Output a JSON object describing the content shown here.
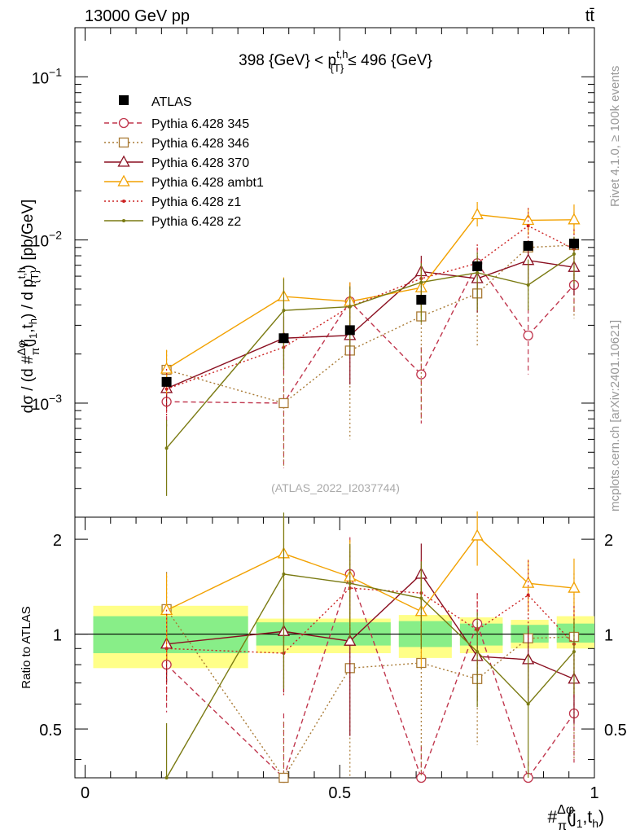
{
  "header": {
    "left_label": "13000 GeV pp",
    "right_label": "tt̄"
  },
  "side_labels": {
    "rivet": "Rivet 4.1.0, ≥ 100k events",
    "mcplots": "mcplots.cern.ch [arXiv:2401.10621]"
  },
  "watermark": "(ATLAS_2022_I2037744)",
  "chart_data": {
    "type": "scatter",
    "title": "398 {GeV} < p^{t,h}_{T} ≤ 496 {GeV}",
    "title_parts": {
      "prefix": "398 {GeV} < p",
      "sup": "t,h",
      "sub": "{T}",
      "suffix": " ≤ 496 {GeV}"
    },
    "ylabel": "dσ / (d #Δφ/π(j1,th) / d p^{t,h}_{T}) [pb/GeV]",
    "ylabel_parts": {
      "a": "dσ / (d #",
      "frac_num": "Δφ",
      "frac_den": "π",
      "b": "(j",
      "b_sub": "1",
      "c": ",t",
      "c_sub": "h",
      "d": ") / d p",
      "sup": "t,h",
      "sub": "{T}",
      "e": ") [pb/GeV]"
    },
    "xlabel": "#Δφ/π(j1,th)",
    "xlabel_parts": {
      "hash": "#",
      "frac_num": "Δφ",
      "frac_den": "π",
      "a": "(j",
      "a_sub": "1",
      "b": ",t",
      "b_sub": "h",
      "c": ")"
    },
    "yscale": "log",
    "ylim": [
      0.0002,
      0.2
    ],
    "xlim": [
      -0.02,
      1.0
    ],
    "x_ticks": [
      0,
      0.5,
      1
    ],
    "x_tick_labels": [
      "0",
      "0.5",
      "1"
    ],
    "y_major_ticks": [
      0.001,
      0.01,
      0.1
    ],
    "y_tick_labels": [
      {
        "base": "10",
        "exp": "−3"
      },
      {
        "base": "10",
        "exp": "−2"
      },
      {
        "base": "10",
        "exp": "−1"
      }
    ],
    "x": [
      0.16,
      0.39,
      0.52,
      0.66,
      0.77,
      0.87,
      0.96
    ],
    "atlas": {
      "name": "ATLAS",
      "values": [
        0.00135,
        0.0025,
        0.0028,
        0.0043,
        0.0069,
        0.0092,
        0.0095
      ],
      "band_edges": [
        0,
        0.32,
        0.6,
        0.72,
        0.82,
        0.91,
        1.0
      ],
      "band_stat": [
        [
          0.87,
          1.14
        ],
        [
          0.92,
          1.09
        ],
        [
          0.91,
          1.1
        ],
        [
          0.92,
          1.08
        ],
        [
          0.94,
          1.07
        ],
        [
          0.94,
          1.08
        ]
      ],
      "band_total": [
        [
          0.78,
          1.23
        ],
        [
          0.87,
          1.12
        ],
        [
          0.84,
          1.15
        ],
        [
          0.87,
          1.13
        ],
        [
          0.9,
          1.11
        ],
        [
          0.9,
          1.14
        ]
      ]
    },
    "series": [
      {
        "name": "Pythia 6.428 345",
        "color": "#c0364d",
        "marker": "circle",
        "dash": "6,4",
        "values": [
          0.00102,
          0.001,
          0.0042,
          0.0015,
          0.0072,
          0.0026,
          0.0053
        ],
        "err_lo": [
          0.0003,
          0.0006,
          0.0016,
          0.00075,
          0.0028,
          0.0011,
          0.0017
        ],
        "err_hi": [
          0.0003,
          0.0006,
          0.0013,
          0.0007,
          0.0018,
          0.0012,
          0.0016
        ],
        "ratio": [
          0.8,
          0.35,
          1.55,
          0.3,
          1.08,
          0.27,
          0.56
        ]
      },
      {
        "name": "Pythia 6.428 346",
        "color": "#a97a35",
        "marker": "square",
        "dash": "2,3",
        "values": [
          0.0016,
          0.001,
          0.0021,
          0.0034,
          0.0047,
          0.009,
          0.0093
        ],
        "err_lo": [
          0.0005,
          0.0006,
          0.0015,
          0.0026,
          0.0025,
          0.0053,
          0.006
        ],
        "err_hi": [
          0.0005,
          0.0005,
          0.0017,
          0.0035,
          0.0018,
          0.0028,
          0.0055
        ],
        "ratio": [
          1.2,
          0.35,
          0.78,
          0.81,
          0.72,
          0.97,
          0.98
        ]
      },
      {
        "name": "Pythia 6.428 370",
        "color": "#8a0f20",
        "marker": "triangle",
        "dash": "",
        "values": [
          0.00123,
          0.0025,
          0.0026,
          0.0064,
          0.0058,
          0.0075,
          0.0068
        ],
        "err_lo": [
          0.0003,
          0.0009,
          0.0013,
          0.0025,
          0.0022,
          0.0022,
          0.0022
        ],
        "err_hi": [
          0.0003,
          0.0009,
          0.0013,
          0.0016,
          0.0016,
          0.002,
          0.0019
        ],
        "ratio": [
          0.93,
          1.02,
          0.95,
          1.55,
          0.85,
          0.83,
          0.72
        ]
      },
      {
        "name": "Pythia 6.428 ambt1",
        "color": "#f2a100",
        "marker": "triangle",
        "dash": "",
        "values": [
          0.00162,
          0.0045,
          0.0042,
          0.0051,
          0.0143,
          0.0132,
          0.0133
        ],
        "err_lo": [
          0.0005,
          0.0008,
          0.0011,
          0.0017,
          0.0022,
          0.0025,
          0.0025
        ],
        "err_hi": [
          0.0005,
          0.0014,
          0.0013,
          0.0017,
          0.0028,
          0.0025,
          0.0032
        ],
        "ratio": [
          1.19,
          1.8,
          1.52,
          1.18,
          2.05,
          1.45,
          1.4
        ]
      },
      {
        "name": "Pythia 6.428 z1",
        "color": "#cc2222",
        "marker": "dot",
        "dash": "2,3",
        "values": [
          0.00122,
          0.0022,
          0.0039,
          0.0058,
          0.0072,
          0.0122,
          0.0088
        ],
        "err_lo": [
          0.0004,
          0.0006,
          0.0012,
          0.0016,
          0.0022,
          0.0035,
          0.0028
        ],
        "err_hi": [
          0.0004,
          0.0006,
          0.0012,
          0.0016,
          0.0022,
          0.0035,
          0.0028
        ],
        "ratio": [
          0.9,
          0.87,
          1.4,
          1.35,
          1.03,
          1.33,
          0.93
        ]
      },
      {
        "name": "Pythia 6.428 z2",
        "color": "#7a7a12",
        "marker": "dot",
        "dash": "",
        "values": [
          0.00053,
          0.0037,
          0.0039,
          0.0055,
          0.0063,
          0.0053,
          0.0082
        ],
        "err_lo": [
          0.00026,
          0.0021,
          0.0018,
          0.0024,
          0.0026,
          0.0016,
          0.0028
        ],
        "err_hi": [
          0.00026,
          0.0021,
          0.0013,
          0.0017,
          0.0021,
          0.0023,
          0.0022
        ],
        "ratio": [
          0.35,
          1.55,
          1.45,
          1.3,
          0.88,
          0.6,
          0.88
        ]
      }
    ],
    "ratio_panel": {
      "ylabel": "Ratio to ATLAS",
      "ylim": [
        0.35,
        2.35
      ],
      "yscale": "log",
      "y_ticks": [
        0.5,
        1,
        2
      ],
      "y_tick_labels": [
        "0.5",
        "1",
        "2"
      ]
    }
  }
}
